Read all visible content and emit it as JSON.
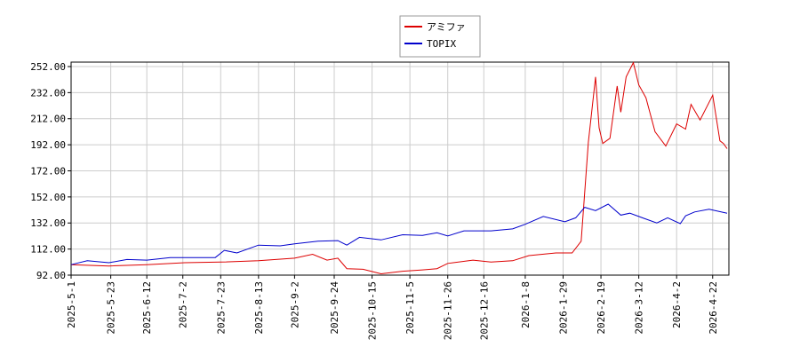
{
  "chart_data": {
    "type": "line",
    "xlim": [
      "2025-5-1",
      "2026-5-1"
    ],
    "ylim": [
      92,
      255.4
    ],
    "grid": true,
    "legend": "top",
    "xticks": [
      "2025-5-1",
      "2025-5-23",
      "2025-6-12",
      "2025-7-2",
      "2025-7-23",
      "2025-8-13",
      "2025-9-2",
      "2025-9-24",
      "2025-10-15",
      "2025-11-5",
      "2025-11-26",
      "2025-12-16",
      "2026-1-8",
      "2026-1-29",
      "2026-2-19",
      "2026-3-12",
      "2026-4-2",
      "2026-4-22"
    ],
    "yticks": [
      {
        "value": 92,
        "label": "92.00"
      },
      {
        "value": 112,
        "label": "112.00"
      },
      {
        "value": 132,
        "label": "132.00"
      },
      {
        "value": 152,
        "label": "152.00"
      },
      {
        "value": 172,
        "label": "172.00"
      },
      {
        "value": 192,
        "label": "192.00"
      },
      {
        "value": 212,
        "label": "212.00"
      },
      {
        "value": 232,
        "label": "232.00"
      },
      {
        "value": 252,
        "label": "252.00"
      }
    ],
    "series": [
      {
        "name": "アミファ",
        "color": "#dd0000",
        "x": [
          "2025-5-1",
          "2025-5-22",
          "2025-6-12",
          "2025-7-3",
          "2025-7-23",
          "2025-8-13",
          "2025-9-2",
          "2025-9-12",
          "2025-9-20",
          "2025-9-26",
          "2025-10-1",
          "2025-10-10",
          "2025-10-20",
          "2025-11-1",
          "2025-11-12",
          "2025-11-20",
          "2025-11-26",
          "2025-12-10",
          "2025-12-20",
          "2026-1-1",
          "2026-1-10",
          "2026-1-25",
          "2026-2-3",
          "2026-2-8",
          "2026-2-12",
          "2026-2-16",
          "2026-2-18",
          "2026-2-20",
          "2026-2-24",
          "2026-2-28",
          "2026-3-2",
          "2026-3-5",
          "2026-3-9",
          "2026-3-12",
          "2026-3-16",
          "2026-3-21",
          "2026-3-27",
          "2026-4-2",
          "2026-4-7",
          "2026-4-10",
          "2026-4-15",
          "2026-4-22",
          "2026-4-26",
          "2026-4-28",
          "2026-4-30"
        ],
        "values": [
          100,
          99,
          100,
          101.5,
          102,
          103,
          105,
          108,
          103.5,
          105,
          97,
          96.5,
          93,
          95,
          96,
          97,
          101,
          103.5,
          102,
          103,
          107,
          109,
          109,
          118,
          194,
          244,
          205,
          193,
          197,
          237,
          217,
          244,
          255,
          238,
          228,
          202,
          191,
          208,
          204,
          223,
          211,
          230,
          195,
          193,
          189
        ]
      },
      {
        "name": "TOPIX",
        "color": "#0000cc",
        "x": [
          "2025-5-1",
          "2025-5-10",
          "2025-5-22",
          "2025-6-1",
          "2025-6-12",
          "2025-6-25",
          "2025-7-10",
          "2025-7-20",
          "2025-7-25",
          "2025-8-1",
          "2025-8-13",
          "2025-8-25",
          "2025-9-2",
          "2025-9-15",
          "2025-9-26",
          "2025-10-1",
          "2025-10-8",
          "2025-10-20",
          "2025-11-1",
          "2025-11-12",
          "2025-11-20",
          "2025-11-26",
          "2025-12-5",
          "2025-12-20",
          "2026-1-1",
          "2026-1-8",
          "2026-1-18",
          "2026-1-30",
          "2026-2-5",
          "2026-2-10",
          "2026-2-16",
          "2026-2-23",
          "2026-3-2",
          "2026-3-7",
          "2026-3-15",
          "2026-3-22",
          "2026-3-28",
          "2026-4-4",
          "2026-4-7",
          "2026-4-12",
          "2026-4-20",
          "2026-4-30"
        ],
        "values": [
          100,
          103,
          101.5,
          104,
          103.5,
          105.5,
          105.5,
          105.5,
          111,
          109,
          115,
          114.5,
          116,
          118,
          118.5,
          115,
          121,
          119,
          123,
          122.5,
          124.5,
          122,
          126,
          126,
          127.5,
          131,
          137,
          133,
          136,
          144,
          141.5,
          146.5,
          138,
          139.5,
          135.5,
          132,
          136,
          131.5,
          137.5,
          140.5,
          142.5,
          139.5
        ]
      }
    ]
  }
}
